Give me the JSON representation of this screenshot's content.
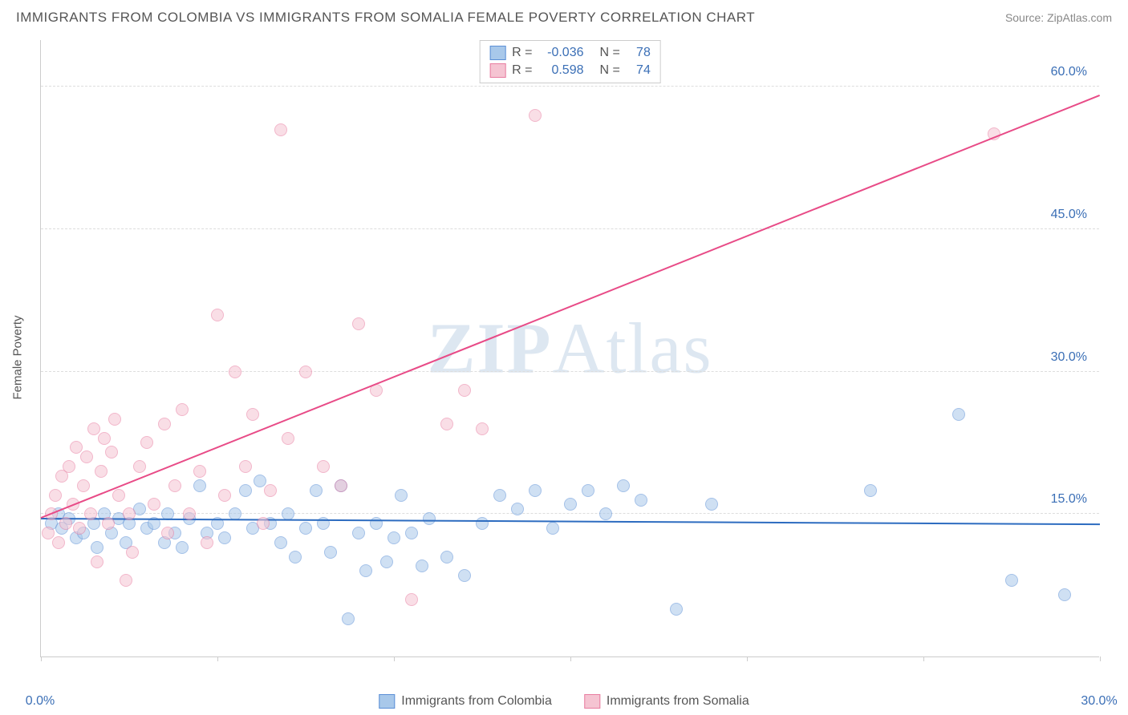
{
  "header": {
    "title": "IMMIGRANTS FROM COLOMBIA VS IMMIGRANTS FROM SOMALIA FEMALE POVERTY CORRELATION CHART",
    "source": "Source: ZipAtlas.com"
  },
  "watermark": {
    "part1": "ZIP",
    "part2": "Atlas"
  },
  "chart": {
    "type": "scatter",
    "ylabel": "Female Poverty",
    "xlim": [
      0,
      30
    ],
    "ylim": [
      0,
      65
    ],
    "background_color": "#ffffff",
    "grid_color": "#dddddd",
    "axis_color": "#cccccc",
    "tick_label_color": "#3b6fb6",
    "y_gridlines": [
      15,
      30,
      45,
      60
    ],
    "y_tick_labels": [
      {
        "y": 15,
        "label": "15.0%"
      },
      {
        "y": 30,
        "label": "30.0%"
      },
      {
        "y": 45,
        "label": "45.0%"
      },
      {
        "y": 60,
        "label": "60.0%"
      }
    ],
    "x_ticks": [
      0,
      5,
      10,
      15,
      20,
      25,
      30
    ],
    "x_tick_labels": [
      {
        "x": 0,
        "label": "0.0%"
      },
      {
        "x": 30,
        "label": "30.0%"
      }
    ],
    "marker_radius": 8,
    "marker_opacity": 0.55,
    "series": [
      {
        "name": "Immigrants from Colombia",
        "fill_color": "#a8c8ea",
        "stroke_color": "#5b8fd6",
        "trend": {
          "color": "#2d6cc0",
          "y_at_x0": 14.4,
          "y_at_x30": 13.8,
          "width": 2
        },
        "stats": {
          "R": "-0.036",
          "N": "78"
        },
        "points": [
          [
            0.3,
            14
          ],
          [
            0.5,
            15
          ],
          [
            0.6,
            13.5
          ],
          [
            0.8,
            14.5
          ],
          [
            1.0,
            12.5
          ],
          [
            1.2,
            13
          ],
          [
            1.5,
            14
          ],
          [
            1.6,
            11.5
          ],
          [
            1.8,
            15
          ],
          [
            2.0,
            13
          ],
          [
            2.2,
            14.5
          ],
          [
            2.4,
            12
          ],
          [
            2.5,
            14
          ],
          [
            2.8,
            15.5
          ],
          [
            3.0,
            13.5
          ],
          [
            3.2,
            14
          ],
          [
            3.5,
            12
          ],
          [
            3.6,
            15
          ],
          [
            3.8,
            13
          ],
          [
            4.0,
            11.5
          ],
          [
            4.2,
            14.5
          ],
          [
            4.5,
            18
          ],
          [
            4.7,
            13
          ],
          [
            5.0,
            14
          ],
          [
            5.2,
            12.5
          ],
          [
            5.5,
            15
          ],
          [
            5.8,
            17.5
          ],
          [
            6.0,
            13.5
          ],
          [
            6.2,
            18.5
          ],
          [
            6.5,
            14
          ],
          [
            6.8,
            12
          ],
          [
            7.0,
            15
          ],
          [
            7.2,
            10.5
          ],
          [
            7.5,
            13.5
          ],
          [
            7.8,
            17.5
          ],
          [
            8.0,
            14
          ],
          [
            8.2,
            11
          ],
          [
            8.5,
            18
          ],
          [
            8.7,
            4
          ],
          [
            9.0,
            13
          ],
          [
            9.2,
            9
          ],
          [
            9.5,
            14
          ],
          [
            9.8,
            10
          ],
          [
            10.0,
            12.5
          ],
          [
            10.2,
            17
          ],
          [
            10.5,
            13
          ],
          [
            10.8,
            9.5
          ],
          [
            11.0,
            14.5
          ],
          [
            11.5,
            10.5
          ],
          [
            12.0,
            8.5
          ],
          [
            12.5,
            14
          ],
          [
            13.0,
            17
          ],
          [
            13.5,
            15.5
          ],
          [
            14.0,
            17.5
          ],
          [
            14.5,
            13.5
          ],
          [
            15.0,
            16
          ],
          [
            15.5,
            17.5
          ],
          [
            16.0,
            15
          ],
          [
            16.5,
            18
          ],
          [
            17.0,
            16.5
          ],
          [
            18.0,
            5
          ],
          [
            19.0,
            16
          ],
          [
            23.5,
            17.5
          ],
          [
            26.0,
            25.5
          ],
          [
            27.5,
            8
          ],
          [
            29.0,
            6.5
          ]
        ]
      },
      {
        "name": "Immigrants from Somalia",
        "fill_color": "#f5c4d2",
        "stroke_color": "#e87ca0",
        "trend": {
          "color": "#e84b87",
          "y_at_x0": 14.5,
          "y_at_x30": 59,
          "width": 2
        },
        "stats": {
          "R": "0.598",
          "N": "74"
        },
        "points": [
          [
            0.2,
            13
          ],
          [
            0.3,
            15
          ],
          [
            0.4,
            17
          ],
          [
            0.5,
            12
          ],
          [
            0.6,
            19
          ],
          [
            0.7,
            14
          ],
          [
            0.8,
            20
          ],
          [
            0.9,
            16
          ],
          [
            1.0,
            22
          ],
          [
            1.1,
            13.5
          ],
          [
            1.2,
            18
          ],
          [
            1.3,
            21
          ],
          [
            1.4,
            15
          ],
          [
            1.5,
            24
          ],
          [
            1.6,
            10
          ],
          [
            1.7,
            19.5
          ],
          [
            1.8,
            23
          ],
          [
            1.9,
            14
          ],
          [
            2.0,
            21.5
          ],
          [
            2.1,
            25
          ],
          [
            2.2,
            17
          ],
          [
            2.4,
            8
          ],
          [
            2.5,
            15
          ],
          [
            2.6,
            11
          ],
          [
            2.8,
            20
          ],
          [
            3.0,
            22.5
          ],
          [
            3.2,
            16
          ],
          [
            3.5,
            24.5
          ],
          [
            3.6,
            13
          ],
          [
            3.8,
            18
          ],
          [
            4.0,
            26
          ],
          [
            4.2,
            15
          ],
          [
            4.5,
            19.5
          ],
          [
            4.7,
            12
          ],
          [
            5.0,
            36
          ],
          [
            5.2,
            17
          ],
          [
            5.5,
            30
          ],
          [
            5.8,
            20
          ],
          [
            6.0,
            25.5
          ],
          [
            6.3,
            14
          ],
          [
            6.5,
            17.5
          ],
          [
            6.8,
            55.5
          ],
          [
            7.0,
            23
          ],
          [
            7.5,
            30
          ],
          [
            8.0,
            20
          ],
          [
            8.5,
            18
          ],
          [
            9.0,
            35
          ],
          [
            9.5,
            28
          ],
          [
            10.5,
            6
          ],
          [
            11.5,
            24.5
          ],
          [
            12.0,
            28
          ],
          [
            12.5,
            24
          ],
          [
            14.0,
            57
          ],
          [
            27.0,
            55
          ]
        ]
      }
    ]
  },
  "legend_top": {
    "label_R": "R =",
    "label_N": "N ="
  },
  "legend_bottom": {
    "items": [
      {
        "series_index": 0
      },
      {
        "series_index": 1
      }
    ]
  }
}
